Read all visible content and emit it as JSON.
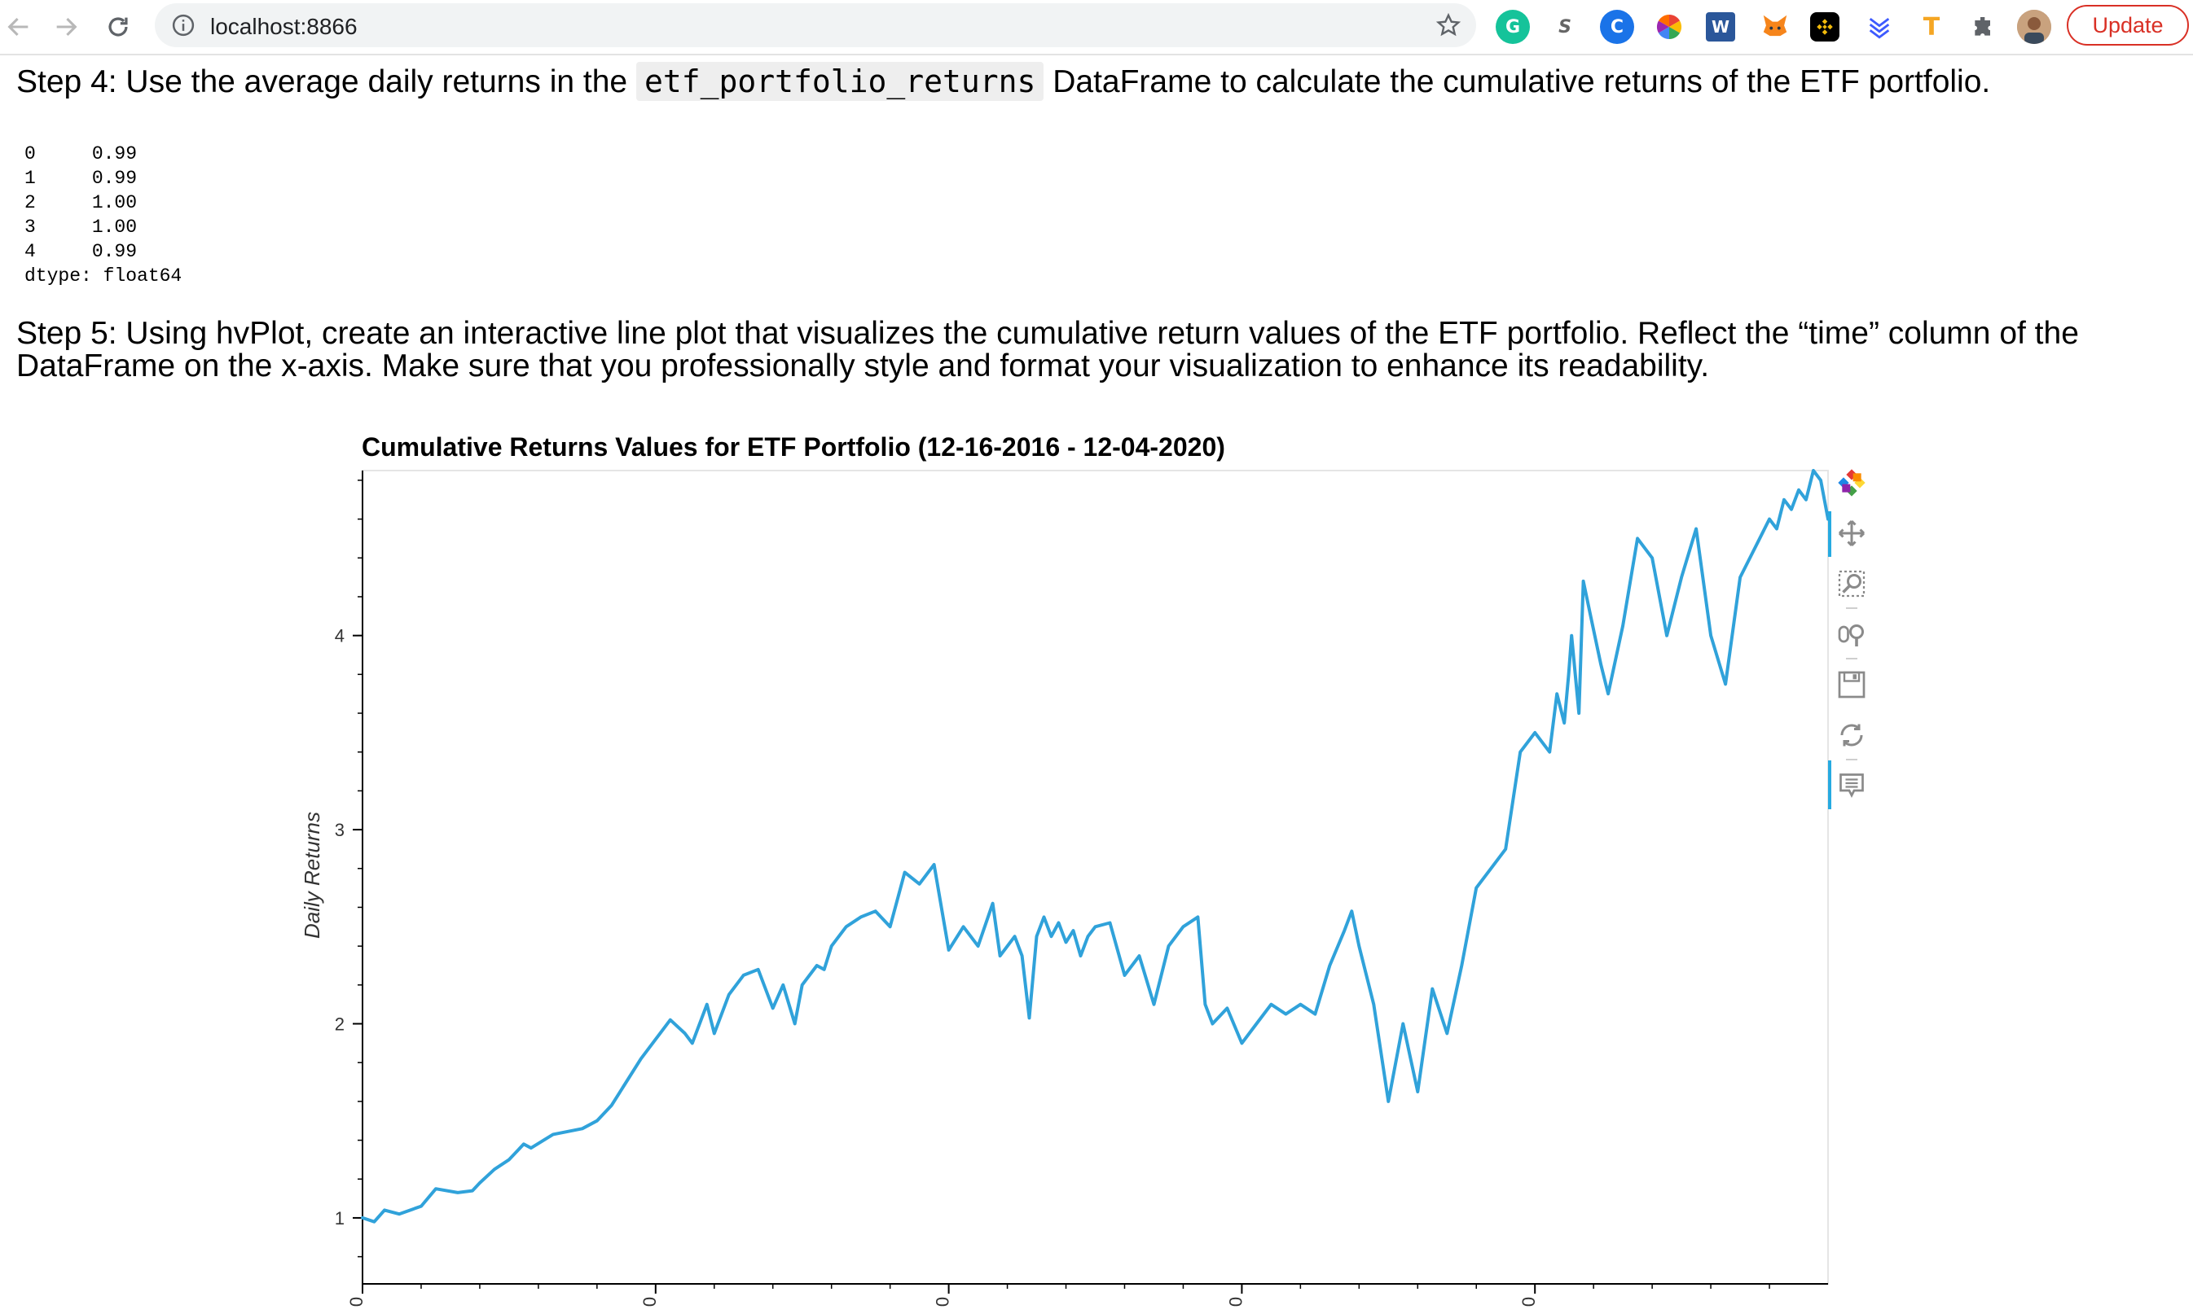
{
  "browser": {
    "url": "localhost:8866",
    "update_label": "Update",
    "extensions": [
      {
        "name": "grammarly",
        "glyph": "G",
        "color": "#15c39a"
      },
      {
        "name": "s-extension",
        "glyph": "S",
        "color": "#ffffff"
      },
      {
        "name": "c-extension",
        "glyph": "C",
        "color": "#1a73e8"
      },
      {
        "name": "color-wheel",
        "glyph": "",
        "color": "#ffffff"
      },
      {
        "name": "word",
        "glyph": "W",
        "color": "#2b579a"
      },
      {
        "name": "metamask",
        "glyph": "",
        "color": "#f6851b"
      },
      {
        "name": "binance",
        "glyph": "",
        "color": "#000000"
      },
      {
        "name": "layers",
        "glyph": "",
        "color": "#ffffff"
      },
      {
        "name": "t-extension",
        "glyph": "T",
        "color": "#ffffff"
      },
      {
        "name": "puzzle",
        "glyph": "",
        "color": "#ffffff"
      }
    ]
  },
  "notebook": {
    "step4_before": "Step 4: Use the average daily returns in the ",
    "step4_code": "etf_portfolio_returns",
    "step4_after": " DataFrame to calculate the cumulative returns of the ETF portfolio.",
    "output_text": "0     0.99\n1     0.99\n2     1.00\n3     1.00\n4     0.99\ndtype: float64",
    "step5_line1": "Step 5: Using hvPlot, create an interactive line plot that visualizes the cumulative return values of the ETF portfolio. Reflect the “time” column of the",
    "step5_line2": "DataFrame on the x-axis. Make sure that you professionally style and format your visualization to enhance its readability."
  },
  "chart_data": {
    "type": "line",
    "title": "Cumulative Returns Values for ETF Portfolio (12-16-2016 - 12-04-2020)",
    "ylabel": "Daily Returns",
    "xlabel": "",
    "xlim": [
      0,
      1000
    ],
    "ylim": [
      0.66,
      4.85
    ],
    "yticks": [
      1,
      2,
      3,
      4
    ],
    "xticks": [
      0,
      200,
      400,
      600,
      800
    ],
    "xtick_labels": [
      "0",
      "0",
      "0",
      "0",
      "0"
    ],
    "line_color": "#30a2da",
    "series": [
      {
        "x": [
          0,
          8,
          15,
          25,
          40,
          50,
          65,
          75,
          80,
          90,
          100,
          110,
          115,
          130,
          150,
          160,
          170,
          180,
          190,
          200,
          210,
          220,
          225,
          235,
          240,
          250,
          260,
          270,
          280,
          287,
          295,
          300,
          310,
          315,
          320,
          330,
          340,
          350,
          360,
          370,
          380,
          390,
          400,
          410,
          420,
          430,
          435,
          445,
          450,
          455,
          460,
          465,
          470,
          475,
          480,
          485,
          490,
          495,
          500,
          510,
          520,
          530,
          540,
          550,
          560,
          570,
          575,
          580,
          590,
          600,
          610,
          620,
          630,
          640,
          650,
          660,
          670,
          675,
          680,
          690,
          700,
          710,
          720,
          730,
          740,
          750,
          760,
          770,
          780,
          790,
          800,
          810,
          815,
          820,
          823,
          825,
          830,
          833,
          838,
          845,
          850,
          860,
          870,
          880,
          890,
          900,
          910,
          920,
          930,
          940,
          950,
          960,
          965,
          970,
          975,
          980,
          985,
          990,
          995,
          1000
        ],
        "values": [
          1.0,
          0.98,
          1.04,
          1.02,
          1.06,
          1.15,
          1.13,
          1.14,
          1.18,
          1.25,
          1.3,
          1.38,
          1.36,
          1.43,
          1.46,
          1.5,
          1.58,
          1.7,
          1.82,
          1.92,
          2.02,
          1.95,
          1.9,
          2.1,
          1.95,
          2.15,
          2.25,
          2.28,
          2.08,
          2.2,
          2.0,
          2.2,
          2.3,
          2.28,
          2.4,
          2.5,
          2.55,
          2.58,
          2.5,
          2.78,
          2.72,
          2.82,
          2.38,
          2.5,
          2.4,
          2.62,
          2.35,
          2.45,
          2.35,
          2.03,
          2.45,
          2.55,
          2.45,
          2.52,
          2.42,
          2.48,
          2.35,
          2.45,
          2.5,
          2.52,
          2.25,
          2.35,
          2.1,
          2.4,
          2.5,
          2.55,
          2.1,
          2.0,
          2.08,
          1.9,
          2.0,
          2.1,
          2.05,
          2.1,
          2.05,
          2.3,
          2.48,
          2.58,
          2.4,
          2.1,
          1.6,
          2.0,
          1.65,
          2.18,
          1.95,
          2.3,
          2.7,
          2.8,
          2.9,
          3.4,
          3.5,
          3.4,
          3.7,
          3.55,
          3.8,
          4.0,
          3.6,
          4.28,
          4.1,
          3.85,
          3.7,
          4.05,
          4.5,
          4.4,
          4.0,
          4.3,
          4.55,
          4.0,
          3.75,
          4.3,
          4.45,
          4.6,
          4.55,
          4.7,
          4.65,
          4.75,
          4.7,
          4.85,
          4.8,
          4.6
        ]
      }
    ]
  }
}
